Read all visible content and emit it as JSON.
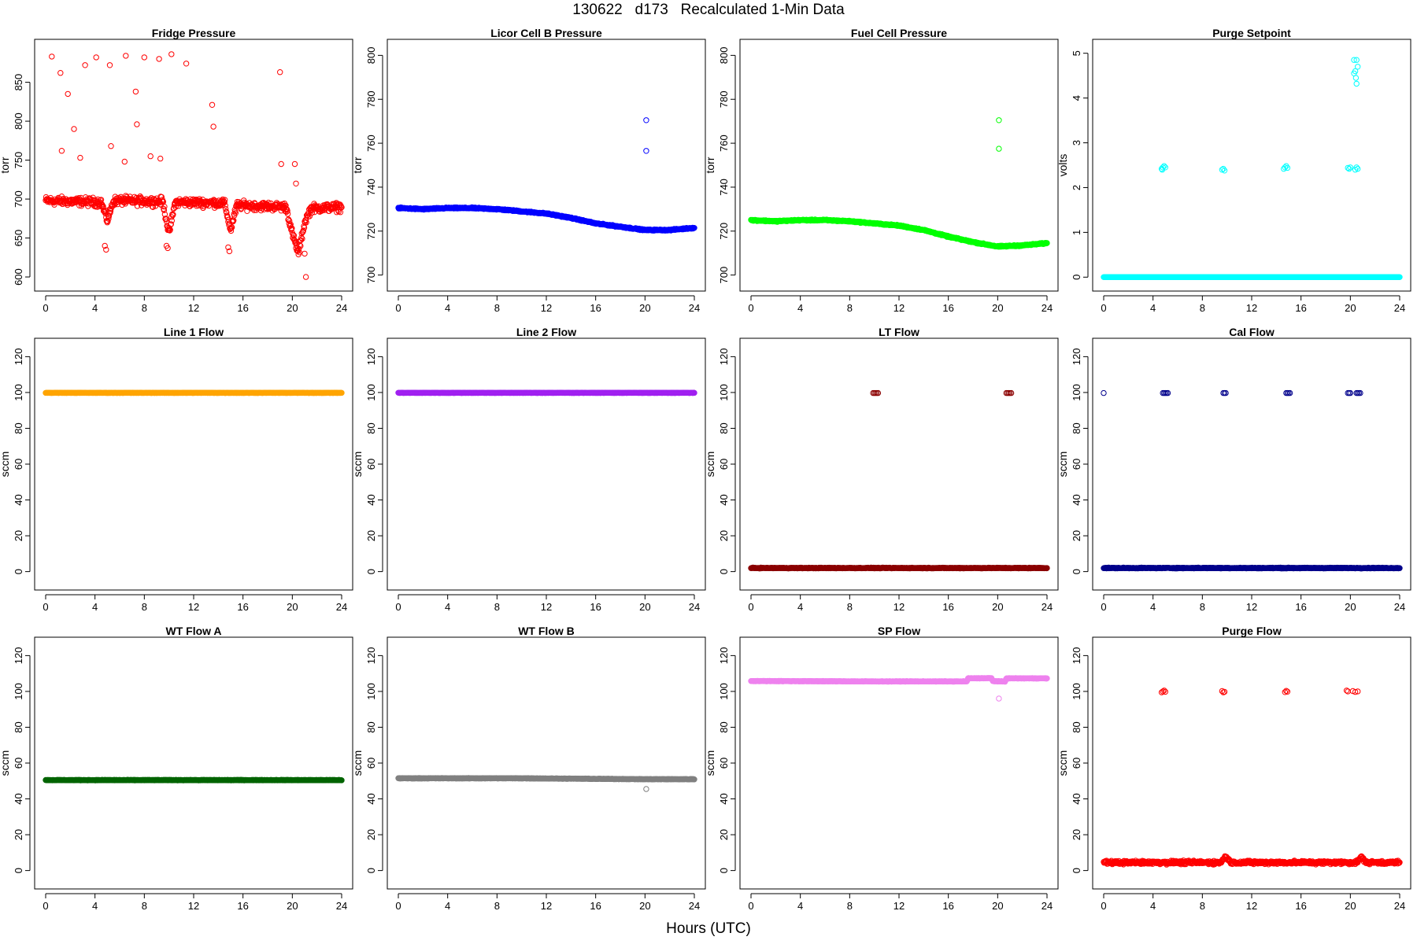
{
  "title": "130622   d173   Recalculated 1-Min Data",
  "xlabel": "Hours (UTC)",
  "chart_data": [
    {
      "type": "scatter",
      "title": "Fridge Pressure",
      "ylabel": "torr",
      "xlim": [
        0,
        24
      ],
      "ylim": [
        594,
        893
      ],
      "xticks": [
        0,
        4,
        8,
        12,
        16,
        20,
        24
      ],
      "yticks": [
        600,
        650,
        700,
        750,
        800,
        850
      ],
      "color": "#ff0000",
      "band": [
        [
          0,
          698
        ],
        [
          4.5,
          696
        ],
        [
          5,
          672
        ],
        [
          5.5,
          698
        ],
        [
          9.5,
          697
        ],
        [
          10,
          655
        ],
        [
          10.5,
          696
        ],
        [
          14.5,
          695
        ],
        [
          15,
          660
        ],
        [
          15.5,
          692
        ],
        [
          19.5,
          690
        ],
        [
          20,
          655
        ],
        [
          20.5,
          630
        ],
        [
          21,
          670
        ],
        [
          21.5,
          688
        ],
        [
          24,
          690
        ]
      ],
      "band_noise": 8,
      "points": [
        [
          0.5,
          883
        ],
        [
          1.2,
          862
        ],
        [
          1.8,
          835
        ],
        [
          2.3,
          790
        ],
        [
          2.8,
          753
        ],
        [
          3.2,
          872
        ],
        [
          1.3,
          762
        ],
        [
          4.1,
          882
        ],
        [
          5.2,
          872
        ],
        [
          6.5,
          884
        ],
        [
          5.3,
          768
        ],
        [
          6.4,
          748
        ],
        [
          7.3,
          838
        ],
        [
          7.4,
          796
        ],
        [
          8.0,
          882
        ],
        [
          8.5,
          755
        ],
        [
          9.2,
          880
        ],
        [
          9.3,
          752
        ],
        [
          10.2,
          886
        ],
        [
          11.4,
          874
        ],
        [
          13.5,
          821
        ],
        [
          13.6,
          793
        ],
        [
          19.0,
          863
        ],
        [
          19.1,
          745
        ],
        [
          20.2,
          745
        ],
        [
          20.3,
          720
        ],
        [
          20.5,
          645
        ],
        [
          21.0,
          630
        ],
        [
          21.1,
          600
        ],
        [
          4.8,
          640
        ],
        [
          4.9,
          635
        ],
        [
          9.8,
          640
        ],
        [
          9.9,
          637
        ],
        [
          14.8,
          638
        ],
        [
          14.9,
          633
        ]
      ]
    },
    {
      "type": "scatter",
      "title": "Licor Cell B Pressure",
      "ylabel": "torr",
      "xlim": [
        0,
        24
      ],
      "ylim": [
        697,
        803
      ],
      "xticks": [
        0,
        4,
        8,
        12,
        16,
        20,
        24
      ],
      "yticks": [
        700,
        720,
        740,
        760,
        780,
        800
      ],
      "color": "#0000ff",
      "band": [
        [
          0,
          730.5
        ],
        [
          2,
          730
        ],
        [
          4,
          730.5
        ],
        [
          6,
          730.5
        ],
        [
          8,
          730
        ],
        [
          10,
          729
        ],
        [
          12,
          728
        ],
        [
          14,
          726
        ],
        [
          16,
          723.5
        ],
        [
          18,
          722
        ],
        [
          20,
          720.5
        ],
        [
          22,
          720.5
        ],
        [
          24,
          721.5
        ]
      ],
      "band_noise": 0.4,
      "points": [
        [
          20.1,
          770.5
        ],
        [
          20.1,
          756.5
        ]
      ]
    },
    {
      "type": "scatter",
      "title": "Fuel Cell Pressure",
      "ylabel": "torr",
      "xlim": [
        0,
        24
      ],
      "ylim": [
        697,
        803
      ],
      "xticks": [
        0,
        4,
        8,
        12,
        16,
        20,
        24
      ],
      "yticks": [
        700,
        720,
        740,
        760,
        780,
        800
      ],
      "color": "#00ff00",
      "band": [
        [
          0,
          725
        ],
        [
          2,
          724.5
        ],
        [
          4,
          725
        ],
        [
          6,
          725
        ],
        [
          8,
          724.5
        ],
        [
          10,
          723.5
        ],
        [
          12,
          722.5
        ],
        [
          14,
          720.5
        ],
        [
          16,
          717.5
        ],
        [
          18,
          715
        ],
        [
          20,
          713
        ],
        [
          22,
          713.5
        ],
        [
          24,
          714.5
        ]
      ],
      "band_noise": 0.4,
      "points": [
        [
          20.1,
          770.5
        ],
        [
          20.1,
          757.5
        ]
      ]
    },
    {
      "type": "scatter",
      "title": "Purge Setpoint",
      "ylabel": "volts",
      "xlim": [
        0,
        24
      ],
      "ylim": [
        -0.1,
        5.1
      ],
      "xticks": [
        0,
        4,
        8,
        12,
        16,
        20,
        24
      ],
      "yticks": [
        0,
        1,
        2,
        3,
        4,
        5
      ],
      "color": "#00ffff",
      "band": [
        [
          0,
          0
        ],
        [
          24,
          0
        ]
      ],
      "band_noise": 0,
      "points": [
        [
          4.7,
          2.42
        ],
        [
          4.8,
          2.45
        ],
        [
          4.9,
          2.48
        ],
        [
          5.0,
          2.45
        ],
        [
          4.75,
          2.4
        ],
        [
          9.6,
          2.4
        ],
        [
          9.7,
          2.42
        ],
        [
          9.8,
          2.38
        ],
        [
          14.6,
          2.42
        ],
        [
          14.7,
          2.45
        ],
        [
          14.8,
          2.48
        ],
        [
          14.9,
          2.44
        ],
        [
          19.8,
          2.44
        ],
        [
          19.9,
          2.42
        ],
        [
          20.0,
          2.45
        ],
        [
          20.4,
          2.4
        ],
        [
          20.5,
          2.45
        ],
        [
          20.6,
          2.42
        ],
        [
          20.3,
          4.85
        ],
        [
          20.5,
          4.85
        ],
        [
          20.6,
          4.7
        ],
        [
          20.4,
          4.6
        ],
        [
          20.3,
          4.55
        ],
        [
          20.45,
          4.45
        ],
        [
          20.5,
          4.32
        ]
      ]
    },
    {
      "type": "scatter",
      "title": "Line 1 Flow",
      "ylabel": "sccm",
      "xlim": [
        0,
        24
      ],
      "ylim": [
        -5,
        125
      ],
      "xticks": [
        0,
        4,
        8,
        12,
        16,
        20,
        24
      ],
      "yticks": [
        0,
        20,
        40,
        60,
        80,
        100,
        120
      ],
      "color": "#ffa500",
      "band": [
        [
          0,
          99.8
        ],
        [
          24,
          99.8
        ]
      ],
      "band_noise": 0.1,
      "points": []
    },
    {
      "type": "scatter",
      "title": "Line 2 Flow",
      "ylabel": "sccm",
      "xlim": [
        0,
        24
      ],
      "ylim": [
        -5,
        125
      ],
      "xticks": [
        0,
        4,
        8,
        12,
        16,
        20,
        24
      ],
      "yticks": [
        0,
        20,
        40,
        60,
        80,
        100,
        120
      ],
      "color": "#a020f0",
      "band": [
        [
          0,
          99.8
        ],
        [
          24,
          99.8
        ]
      ],
      "band_noise": 0.1,
      "points": []
    },
    {
      "type": "scatter",
      "title": "LT Flow",
      "ylabel": "sccm",
      "xlim": [
        0,
        24
      ],
      "ylim": [
        -5,
        125
      ],
      "xticks": [
        0,
        4,
        8,
        12,
        16,
        20,
        24
      ],
      "yticks": [
        0,
        20,
        40,
        60,
        80,
        100,
        120
      ],
      "color": "#8b0000",
      "band": [
        [
          0,
          2
        ],
        [
          24,
          2
        ]
      ],
      "band_noise": 0.3,
      "points": [
        [
          9.9,
          99.7
        ],
        [
          10.0,
          99.7
        ],
        [
          10.1,
          99.7
        ],
        [
          10.2,
          99.7
        ],
        [
          10.3,
          99.7
        ],
        [
          20.7,
          99.7
        ],
        [
          20.8,
          99.7
        ],
        [
          20.9,
          99.7
        ],
        [
          21.0,
          99.7
        ],
        [
          21.1,
          99.7
        ]
      ]
    },
    {
      "type": "scatter",
      "title": "Cal Flow",
      "ylabel": "sccm",
      "xlim": [
        0,
        24
      ],
      "ylim": [
        -5,
        125
      ],
      "xticks": [
        0,
        4,
        8,
        12,
        16,
        20,
        24
      ],
      "yticks": [
        0,
        20,
        40,
        60,
        80,
        100,
        120
      ],
      "color": "#00008b",
      "band": [
        [
          0,
          2
        ],
        [
          24,
          2
        ]
      ],
      "band_noise": 0.3,
      "points": [
        [
          0.0,
          99.7
        ],
        [
          4.8,
          99.7
        ],
        [
          4.9,
          99.7
        ],
        [
          5.0,
          99.7
        ],
        [
          5.1,
          99.7
        ],
        [
          5.2,
          99.7
        ],
        [
          9.7,
          99.7
        ],
        [
          9.8,
          99.7
        ],
        [
          9.9,
          99.7
        ],
        [
          14.8,
          99.7
        ],
        [
          14.9,
          99.7
        ],
        [
          15.0,
          99.7
        ],
        [
          15.1,
          99.7
        ],
        [
          19.8,
          99.7
        ],
        [
          19.9,
          99.7
        ],
        [
          20.0,
          99.7
        ],
        [
          20.5,
          99.7
        ],
        [
          20.6,
          99.7
        ],
        [
          20.7,
          99.7
        ],
        [
          20.8,
          99.7
        ]
      ]
    },
    {
      "type": "scatter",
      "title": "WT Flow A",
      "ylabel": "sccm",
      "xlim": [
        0,
        24
      ],
      "ylim": [
        -5,
        125
      ],
      "xticks": [
        0,
        4,
        8,
        12,
        16,
        20,
        24
      ],
      "yticks": [
        0,
        20,
        40,
        60,
        80,
        100,
        120
      ],
      "color": "#006400",
      "band": [
        [
          0,
          50.5
        ],
        [
          24,
          50.5
        ]
      ],
      "band_noise": 0.2,
      "points": []
    },
    {
      "type": "scatter",
      "title": "WT Flow B",
      "ylabel": "sccm",
      "xlim": [
        0,
        24
      ],
      "ylim": [
        -5,
        125
      ],
      "xticks": [
        0,
        4,
        8,
        12,
        16,
        20,
        24
      ],
      "yticks": [
        0,
        20,
        40,
        60,
        80,
        100,
        120
      ],
      "color": "#808080",
      "band": [
        [
          0,
          51.5
        ],
        [
          10,
          51.5
        ],
        [
          16,
          51.2
        ],
        [
          20,
          51
        ],
        [
          24,
          51
        ]
      ],
      "band_noise": 0.2,
      "points": [
        [
          20.1,
          45.5
        ]
      ]
    },
    {
      "type": "scatter",
      "title": "SP Flow",
      "ylabel": "sccm",
      "xlim": [
        0,
        24
      ],
      "ylim": [
        -5,
        125
      ],
      "xticks": [
        0,
        4,
        8,
        12,
        16,
        20,
        24
      ],
      "yticks": [
        0,
        20,
        40,
        60,
        80,
        100,
        120
      ],
      "color": "#ee82ee",
      "band": [
        [
          0,
          105.8
        ],
        [
          10,
          105.6
        ],
        [
          17.5,
          105.6
        ],
        [
          17.6,
          107.3
        ],
        [
          19.5,
          107.4
        ],
        [
          19.6,
          105.8
        ],
        [
          20.6,
          105.5
        ],
        [
          20.7,
          107.3
        ],
        [
          24,
          107.3
        ]
      ],
      "band_noise": 0.2,
      "points": [
        [
          20.1,
          96
        ]
      ]
    },
    {
      "type": "scatter",
      "title": "Purge Flow",
      "ylabel": "sccm",
      "xlim": [
        0,
        24
      ],
      "ylim": [
        -5,
        125
      ],
      "xticks": [
        0,
        4,
        8,
        12,
        16,
        20,
        24
      ],
      "yticks": [
        0,
        20,
        40,
        60,
        80,
        100,
        120
      ],
      "color": "#ff0000",
      "band": [
        [
          0,
          4.5
        ],
        [
          9.5,
          4.5
        ],
        [
          9.9,
          8
        ],
        [
          10.3,
          4.5
        ],
        [
          20.5,
          4.5
        ],
        [
          20.9,
          7.5
        ],
        [
          21.3,
          4.5
        ],
        [
          24,
          4.5
        ]
      ],
      "band_noise": 1.4,
      "points": [
        [
          4.7,
          99.5
        ],
        [
          4.8,
          100
        ],
        [
          4.9,
          100.5
        ],
        [
          5.0,
          99.8
        ],
        [
          9.6,
          100.2
        ],
        [
          9.7,
          99.5
        ],
        [
          9.8,
          99.8
        ],
        [
          14.7,
          99.6
        ],
        [
          14.8,
          100.3
        ],
        [
          14.9,
          99.9
        ],
        [
          19.7,
          100.5
        ],
        [
          19.8,
          100
        ],
        [
          20.2,
          100.2
        ],
        [
          20.4,
          99.7
        ],
        [
          20.6,
          100
        ]
      ]
    }
  ]
}
